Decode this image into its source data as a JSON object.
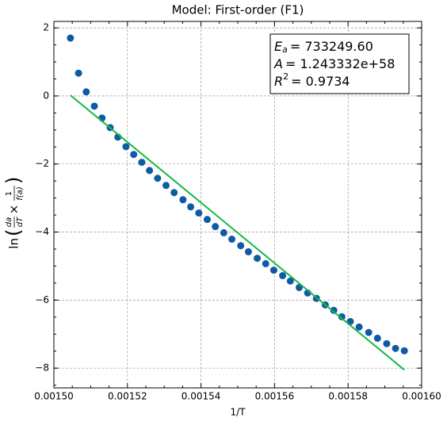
{
  "chart_data": {
    "type": "scatter",
    "title": "Model: First-order (F1)",
    "xlabel": "1/T",
    "ylabel": {
      "fn": "ln",
      "frac1": [
        "da",
        "dT"
      ],
      "times": "×",
      "frac2": [
        "1",
        "f(a)"
      ]
    },
    "annotations": [
      {
        "var": "E",
        "sub": "a",
        "text": "= 733249.60"
      },
      {
        "var": "A",
        "text": "= 1.243332e+58"
      },
      {
        "var": "R",
        "sup": "2",
        "text": "= 0.9734"
      }
    ],
    "xlim": [
      0.0015,
      0.0016
    ],
    "ylim": [
      -8.58,
      2.19
    ],
    "xticks": [
      {
        "value": 0.0015,
        "label": "0.00150"
      },
      {
        "value": 0.00152,
        "label": "0.00152"
      },
      {
        "value": 0.00154,
        "label": "0.00154"
      },
      {
        "value": 0.00156,
        "label": "0.00156"
      },
      {
        "value": 0.00158,
        "label": "0.00158"
      },
      {
        "value": 0.0016,
        "label": "0.00160"
      }
    ],
    "yticks": [
      {
        "value": -8,
        "label": "−8"
      },
      {
        "value": -6,
        "label": "−6"
      },
      {
        "value": -4,
        "label": "−4"
      },
      {
        "value": -2,
        "label": "−2"
      },
      0,
      2
    ],
    "grid": true,
    "series": [
      {
        "kind": "scatter",
        "color": "#0f5aa6",
        "x": [
          0.0015045,
          0.0015067,
          0.0015088,
          0.001511,
          0.0015131,
          0.0015153,
          0.0015174,
          0.0015196,
          0.0015217,
          0.0015239,
          0.001526,
          0.0015282,
          0.0015305,
          0.0015327,
          0.0015351,
          0.0015372,
          0.0015394,
          0.0015417,
          0.0015439,
          0.0015462,
          0.0015484,
          0.0015508,
          0.0015529,
          0.0015553,
          0.0015576,
          0.0015598,
          0.0015622,
          0.0015643,
          0.0015667,
          0.001569,
          0.0015714,
          0.0015738,
          0.0015761,
          0.0015783,
          0.0015806,
          0.001583,
          0.0015856,
          0.001588,
          0.0015905,
          0.0015929,
          0.0015953
        ],
        "values": [
          1.7,
          0.67,
          0.12,
          -0.3,
          -0.65,
          -0.93,
          -1.21,
          -1.49,
          -1.72,
          -1.95,
          -2.19,
          -2.42,
          -2.63,
          -2.84,
          -3.05,
          -3.26,
          -3.44,
          -3.63,
          -3.84,
          -4.02,
          -4.21,
          -4.4,
          -4.58,
          -4.77,
          -4.93,
          -5.12,
          -5.28,
          -5.44,
          -5.63,
          -5.79,
          -5.95,
          -6.14,
          -6.3,
          -6.49,
          -6.63,
          -6.79,
          -6.95,
          -7.12,
          -7.28,
          -7.42,
          -7.49
        ]
      },
      {
        "kind": "line",
        "color": "#16b844",
        "x": [
          0.0015045,
          0.0015953
        ],
        "values": [
          0.02,
          -8.05
        ]
      }
    ]
  }
}
